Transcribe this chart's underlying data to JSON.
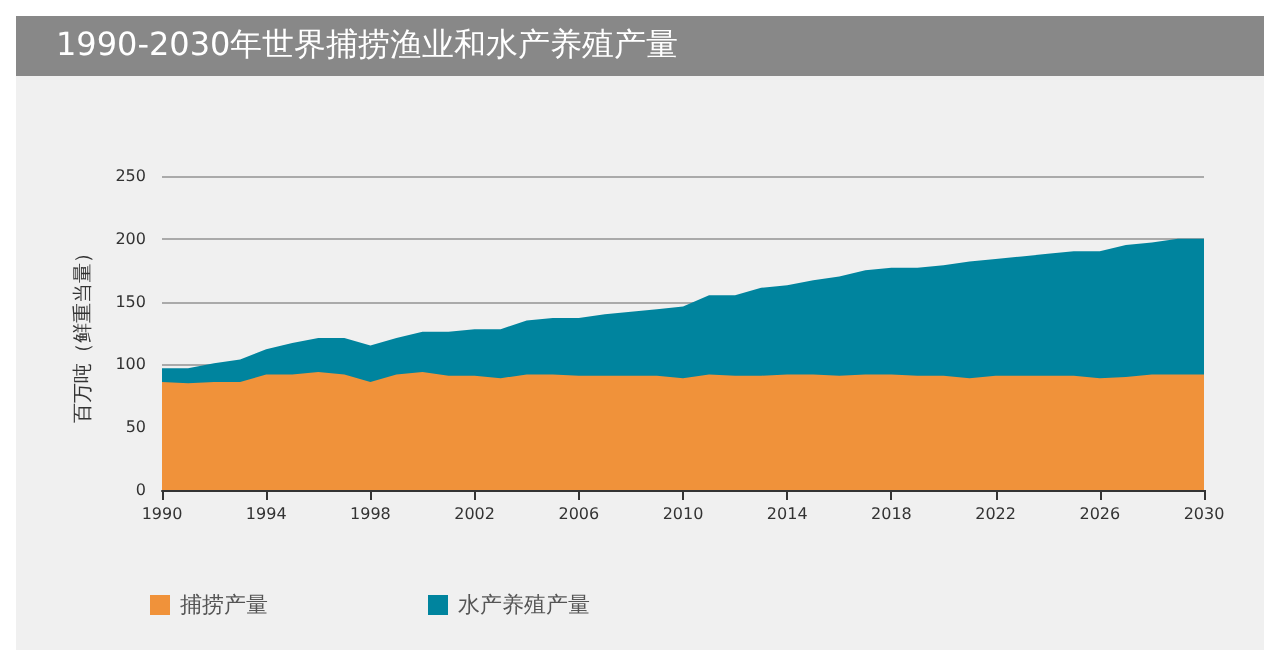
{
  "chart_data": {
    "type": "area",
    "title": "1990-2030年世界捕捞渔业和水产养殖产量",
    "ylabel": "百万吨（鲜重当量）",
    "stacked": true,
    "x": [
      1990,
      1991,
      1992,
      1993,
      1994,
      1995,
      1996,
      1997,
      1998,
      1999,
      2000,
      2001,
      2002,
      2003,
      2004,
      2005,
      2006,
      2007,
      2008,
      2009,
      2010,
      2011,
      2012,
      2013,
      2014,
      2015,
      2016,
      2017,
      2018,
      2019,
      2020,
      2021,
      2022,
      2023,
      2024,
      2025,
      2026,
      2027,
      2028,
      2029,
      2030
    ],
    "series": [
      {
        "name": "捕捞产量",
        "color": "#f0923a",
        "values": [
          86,
          85,
          86,
          86,
          92,
          92,
          94,
          92,
          86,
          92,
          94,
          91,
          91,
          89,
          92,
          92,
          91,
          91,
          91,
          91,
          89,
          92,
          91,
          91,
          92,
          92,
          91,
          92,
          92,
          91,
          91,
          89,
          91,
          91,
          91,
          91,
          89,
          90,
          92,
          92,
          92
        ]
      },
      {
        "name": "水产养殖产量",
        "color": "#00849e",
        "values": [
          11,
          12,
          15,
          18,
          20,
          25,
          27,
          29,
          29,
          29,
          32,
          35,
          37,
          39,
          43,
          45,
          46,
          49,
          51,
          53,
          57,
          63,
          64,
          70,
          71,
          75,
          79,
          83,
          85,
          86,
          88,
          93,
          93,
          95,
          97,
          99,
          101,
          105,
          105,
          108,
          108
        ]
      }
    ],
    "xlim": [
      1990,
      2030
    ],
    "xticks": [
      {
        "value": 1990,
        "label": "1990"
      },
      {
        "value": 1994,
        "label": "1994"
      },
      {
        "value": 1998,
        "label": "1998"
      },
      {
        "value": 2002,
        "label": "2002"
      },
      {
        "value": 2006,
        "label": "2006"
      },
      {
        "value": 2010,
        "label": "2010"
      },
      {
        "value": 2014,
        "label": "2014"
      },
      {
        "value": 2018,
        "label": "2018"
      },
      {
        "value": 2022,
        "label": "2022"
      },
      {
        "value": 2026,
        "label": "2026"
      },
      {
        "value": 2030,
        "label": "2030"
      }
    ],
    "ylim": [
      0,
      250
    ],
    "yticks": [
      0,
      50,
      100,
      150,
      200,
      250
    ],
    "grid": "y",
    "legend": "bottom left"
  }
}
